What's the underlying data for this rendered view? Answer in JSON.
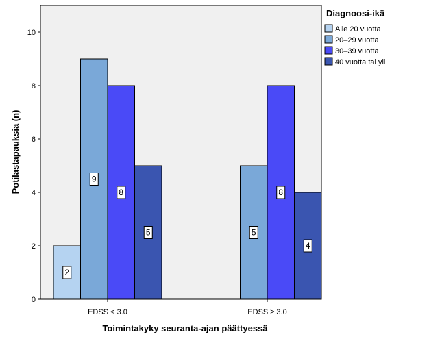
{
  "chart_data": {
    "type": "bar",
    "title": "",
    "xlabel": "Toimintakyky seuranta-ajan päättyessä",
    "ylabel": "Potilastapauksia (n)",
    "ylim": [
      0,
      11
    ],
    "yticks": [
      0,
      2,
      4,
      6,
      8,
      10
    ],
    "grid": false,
    "legend_position": "right",
    "legend_title": "Diagnoosi-ikä",
    "categories": [
      "EDSS < 3.0",
      "EDSS ≥ 3.0"
    ],
    "series": [
      {
        "name": "Alle 20 vuotta",
        "color": "#b5d3f1",
        "values": [
          2,
          0
        ]
      },
      {
        "name": "20–29 vuotta",
        "color": "#7aa8d8",
        "values": [
          9,
          5
        ]
      },
      {
        "name": "30–39 vuotta",
        "color": "#4a4af7",
        "values": [
          8,
          8
        ]
      },
      {
        "name": "40 vuotta tai yli",
        "color": "#3a55b0",
        "values": [
          5,
          4
        ]
      }
    ]
  }
}
